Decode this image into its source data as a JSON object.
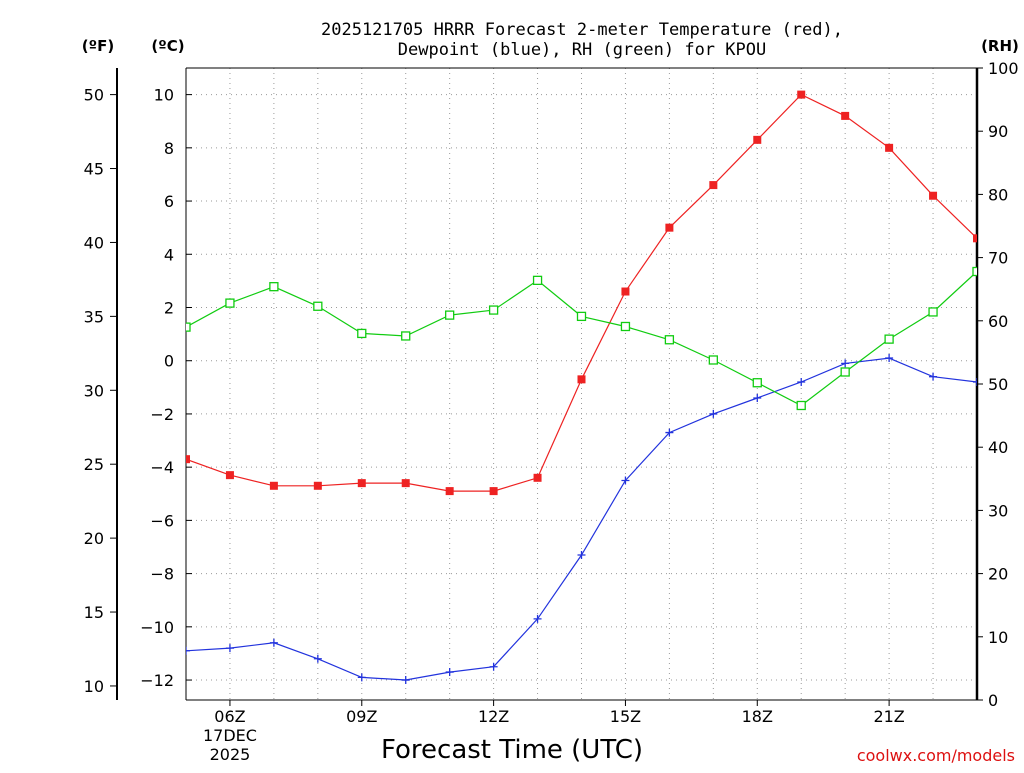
{
  "chart_data": {
    "type": "line",
    "title": [
      "2025121705 HRRR Forecast 2-meter Temperature (red),",
      "Dewpoint (blue), RH (green) for KPOU"
    ],
    "xlabel": "Forecast Time (UTC)",
    "credit": "coolwx.com/models",
    "units": {
      "fahrenheit": "(ºF)",
      "celsius": "(ºC)",
      "rh": "(RH)"
    },
    "x_hours": [
      5,
      6,
      7,
      8,
      9,
      10,
      11,
      12,
      13,
      14,
      15,
      16,
      17,
      18,
      19,
      20,
      21,
      22,
      23
    ],
    "xlim": [
      5,
      23
    ],
    "x_ticks": [
      {
        "hour": 6,
        "label": "06Z",
        "sub": [
          "17DEC",
          "2025"
        ]
      },
      {
        "hour": 9,
        "label": "09Z"
      },
      {
        "hour": 12,
        "label": "12Z"
      },
      {
        "hour": 15,
        "label": "15Z"
      },
      {
        "hour": 18,
        "label": "18Z"
      },
      {
        "hour": 21,
        "label": "21Z"
      }
    ],
    "celsius_axis": {
      "ylim": [
        -12.75,
        11.0
      ],
      "ticks": [
        "10",
        "8",
        "6",
        "4",
        "2",
        "0",
        "−2",
        "−4",
        "−6",
        "−8",
        "−10",
        "−12"
      ]
    },
    "fahrenheit_axis": {
      "ticks": [
        "50",
        "45",
        "40",
        "35",
        "30",
        "25",
        "20",
        "15",
        "10"
      ]
    },
    "rh_axis": {
      "ylim": [
        0,
        100
      ],
      "ticks": [
        "100",
        "90",
        "80",
        "70",
        "60",
        "50",
        "40",
        "30",
        "20",
        "10",
        "0"
      ]
    },
    "series": [
      {
        "name": "2-meter Temperature",
        "axis": "celsius",
        "color": "#ee2222",
        "marker": "filled-square",
        "values": [
          -3.7,
          -4.3,
          -4.7,
          -4.7,
          -4.6,
          -4.6,
          -4.9,
          -4.9,
          -4.4,
          -0.7,
          2.6,
          5.0,
          6.6,
          8.3,
          10.0,
          9.2,
          8.0,
          6.2,
          4.6
        ]
      },
      {
        "name": "Dewpoint",
        "axis": "celsius",
        "color": "#2233dd",
        "marker": "plus",
        "values": [
          -10.9,
          -10.8,
          -10.6,
          -11.2,
          -11.9,
          -12.0,
          -11.7,
          -11.5,
          -9.7,
          -7.3,
          -4.5,
          -2.7,
          -2.0,
          -1.4,
          -0.8,
          -0.1,
          0.1,
          -0.6,
          -0.8
        ]
      },
      {
        "name": "Relative Humidity",
        "axis": "rh",
        "color": "#11cc11",
        "marker": "open-square",
        "values": [
          59.0,
          62.8,
          65.4,
          62.3,
          58.0,
          57.6,
          60.9,
          61.7,
          66.4,
          60.7,
          59.1,
          57.0,
          53.8,
          50.2,
          46.6,
          51.9,
          57.1,
          61.4,
          67.8
        ]
      }
    ]
  }
}
